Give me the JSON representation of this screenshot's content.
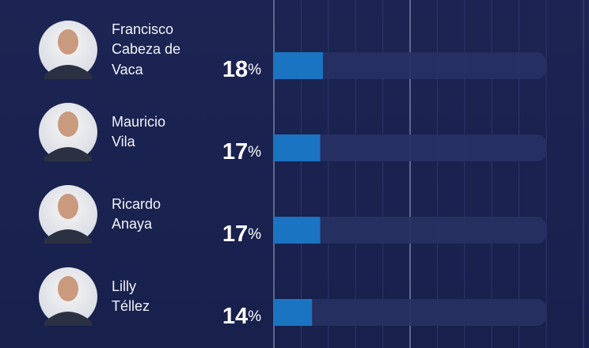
{
  "chart_data": {
    "type": "bar",
    "orientation": "horizontal",
    "categories": [
      "Francisco\nCabeza de\nVaca",
      "Mauricio\nVila",
      "Ricardo\nAnaya",
      "Lilly\nTéllez"
    ],
    "values": [
      18,
      17,
      17,
      14
    ],
    "value_labels": [
      "18%",
      "17%",
      "17%",
      "14%"
    ],
    "color": "#1b74c2",
    "xlim": [
      0,
      100
    ],
    "xticks": [
      0,
      10,
      20,
      30,
      40,
      50,
      60,
      70,
      80,
      90,
      100
    ],
    "grid": true
  }
}
